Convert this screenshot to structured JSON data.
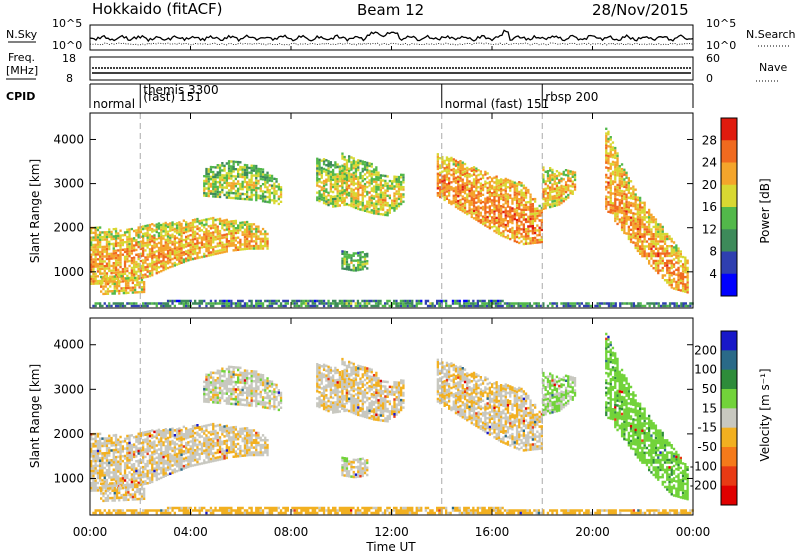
{
  "header": {
    "station": "Hokkaido (fitACF)",
    "beam": "Beam 12",
    "date": "28/Nov/2015"
  },
  "noise_panel": {
    "left_label": "N.Sky",
    "right_label": "N.Search",
    "ticks_left": [
      "10^5",
      "10^0"
    ],
    "ticks_right": [
      "10^5",
      "10^0"
    ]
  },
  "freq_panel": {
    "left_label_1": "Freq.",
    "left_label_2": "[MHz]",
    "ticks_left": [
      "18",
      "8"
    ],
    "right_label": "Nave",
    "ticks_right": [
      "60",
      "0"
    ]
  },
  "cpid_panel": {
    "label": "CPID",
    "segments": [
      {
        "text": "normal",
        "row": 2,
        "start_h": 0.0
      },
      {
        "text": "themis 3300",
        "row": 0,
        "start_h": 2.0
      },
      {
        "text": "(fast) 151",
        "row": 1,
        "start_h": 2.0
      },
      {
        "text": "normal (fast) 151",
        "row": 2,
        "start_h": 14.0
      },
      {
        "text": "rbsp 200",
        "row": 1,
        "start_h": 18.0
      }
    ],
    "boundaries_h": [
      2.0,
      14.0,
      18.0
    ]
  },
  "axes": {
    "xlabel": "Time UT",
    "x_ticks": [
      "00:00",
      "04:00",
      "08:00",
      "12:00",
      "16:00",
      "20:00",
      "00:00"
    ],
    "ylabel": "Slant Range [km]",
    "y_ticks": [
      "1000",
      "2000",
      "3000",
      "4000"
    ]
  },
  "power_scale": {
    "label": "Power [dB]",
    "ticks": [
      "4",
      "8",
      "12",
      "16",
      "20",
      "24",
      "28"
    ],
    "colors": [
      "#0000ff",
      "#2f3fb0",
      "#3d8a5a",
      "#52b84a",
      "#d8d832",
      "#f4a52b",
      "#f06a1f",
      "#e01b0e"
    ]
  },
  "velocity_scale": {
    "label": "Velocity [m s⁻¹]",
    "ticks": [
      "200",
      "100",
      "50",
      "15",
      "-15",
      "-50",
      "-100",
      "-200"
    ],
    "colors": [
      "#1818c8",
      "#2a6a88",
      "#2e8c3a",
      "#72d33a",
      "#c8c8c0",
      "#f2b020",
      "#f57a1a",
      "#e83a14",
      "#e00000"
    ]
  },
  "chart_data": {
    "type": "heatmap",
    "title": "Hokkaido (fitACF) Beam 12 28/Nov/2015",
    "x": {
      "label": "Time UT",
      "range_h": [
        0,
        24
      ],
      "ticks": [
        "00:00",
        "04:00",
        "08:00",
        "12:00",
        "16:00",
        "20:00",
        "00:00"
      ]
    },
    "y": {
      "label": "Slant Range [km]",
      "range_km": [
        180,
        4600
      ],
      "ticks": [
        1000,
        2000,
        3000,
        4000
      ]
    },
    "panels": [
      {
        "name": "Power [dB]",
        "range": [
          0,
          31
        ]
      },
      {
        "name": "Velocity [m s-1]",
        "range": [
          -240,
          240
        ]
      }
    ],
    "regions": [
      {
        "t0": 0.0,
        "t1": 7.1,
        "r_bot": [
          700,
          720,
          780,
          880,
          1080,
          1250,
          1350,
          1450,
          1500,
          1500
        ],
        "r_top": [
          2000,
          1950,
          1950,
          2050,
          2100,
          2150,
          2200,
          2150,
          2100,
          1900
        ],
        "p": 23,
        "v": -8
      },
      {
        "t0": 0.4,
        "t1": 2.2,
        "r_bot": [
          470,
          480,
          500,
          520
        ],
        "r_top": [
          900,
          880,
          860,
          820
        ],
        "p": 22,
        "v": -10
      },
      {
        "t0": 4.5,
        "t1": 7.6,
        "r_bot": [
          2700,
          2650,
          2600,
          2500
        ],
        "r_top": [
          3300,
          3500,
          3400,
          3000
        ],
        "p": 18,
        "v": 0
      },
      {
        "t0": 9.0,
        "t1": 10.2,
        "r_bot": [
          2600,
          2450,
          2500
        ],
        "r_top": [
          3550,
          3500,
          3250
        ],
        "p": 18,
        "v": -5
      },
      {
        "t0": 10.0,
        "t1": 12.5,
        "r_bot": [
          2550,
          2400,
          2300,
          2250,
          2600
        ],
        "r_top": [
          3700,
          3550,
          3400,
          3100,
          3200
        ],
        "p": 20,
        "v": -8
      },
      {
        "t0": 10.0,
        "t1": 11.0,
        "r_bot": [
          1050,
          1000,
          1050
        ],
        "r_top": [
          1450,
          1450,
          1400
        ],
        "p": 16,
        "v": 0
      },
      {
        "t0": 13.8,
        "t1": 18.0,
        "r_bot": [
          2700,
          2400,
          2100,
          1800,
          1600,
          1650
        ],
        "r_top": [
          3650,
          3500,
          3300,
          3100,
          3000,
          2400
        ],
        "p": 25,
        "v": -10
      },
      {
        "t0": 18.0,
        "t1": 19.3,
        "r_bot": [
          2400,
          2500,
          2800
        ],
        "r_top": [
          3350,
          3300,
          3250
        ],
        "p": 22,
        "v": 20
      },
      {
        "t0": 20.5,
        "t1": 23.8,
        "r_bot": [
          2400,
          1900,
          1400,
          1000,
          600,
          500
        ],
        "r_top": [
          4300,
          3400,
          2700,
          2200,
          1700,
          1200
        ],
        "p": 24,
        "v": 35
      },
      {
        "t0": 0.0,
        "t1": 24.0,
        "r_bot": [
          200,
          200,
          200,
          200,
          200
        ],
        "r_top": [
          300,
          320,
          340,
          300,
          280
        ],
        "p": 12,
        "v": -30
      }
    ]
  }
}
